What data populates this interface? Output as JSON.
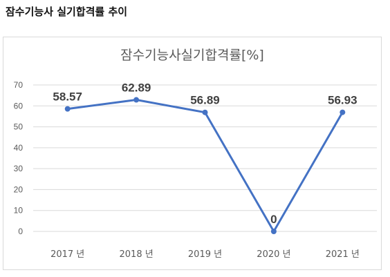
{
  "heading": "잠수기능사 실기합격률 추이",
  "chart_data": {
    "type": "line",
    "title": "잠수기능사실기합격률[%]",
    "categories": [
      "2017 년",
      "2018 년",
      "2019 년",
      "2020 년",
      "2021 년"
    ],
    "series": [
      {
        "values": [
          58.57,
          62.89,
          56.89,
          0,
          56.93
        ]
      }
    ],
    "data_labels": [
      "58.57",
      "62.89",
      "56.89",
      "0",
      "56.93"
    ],
    "y_ticks": [
      "0",
      "10",
      "20",
      "30",
      "40",
      "50",
      "60",
      "70"
    ],
    "ylim": [
      0,
      70
    ],
    "grid": true,
    "line_color": "#4472c4",
    "grid_color": "#d9d9d9"
  }
}
